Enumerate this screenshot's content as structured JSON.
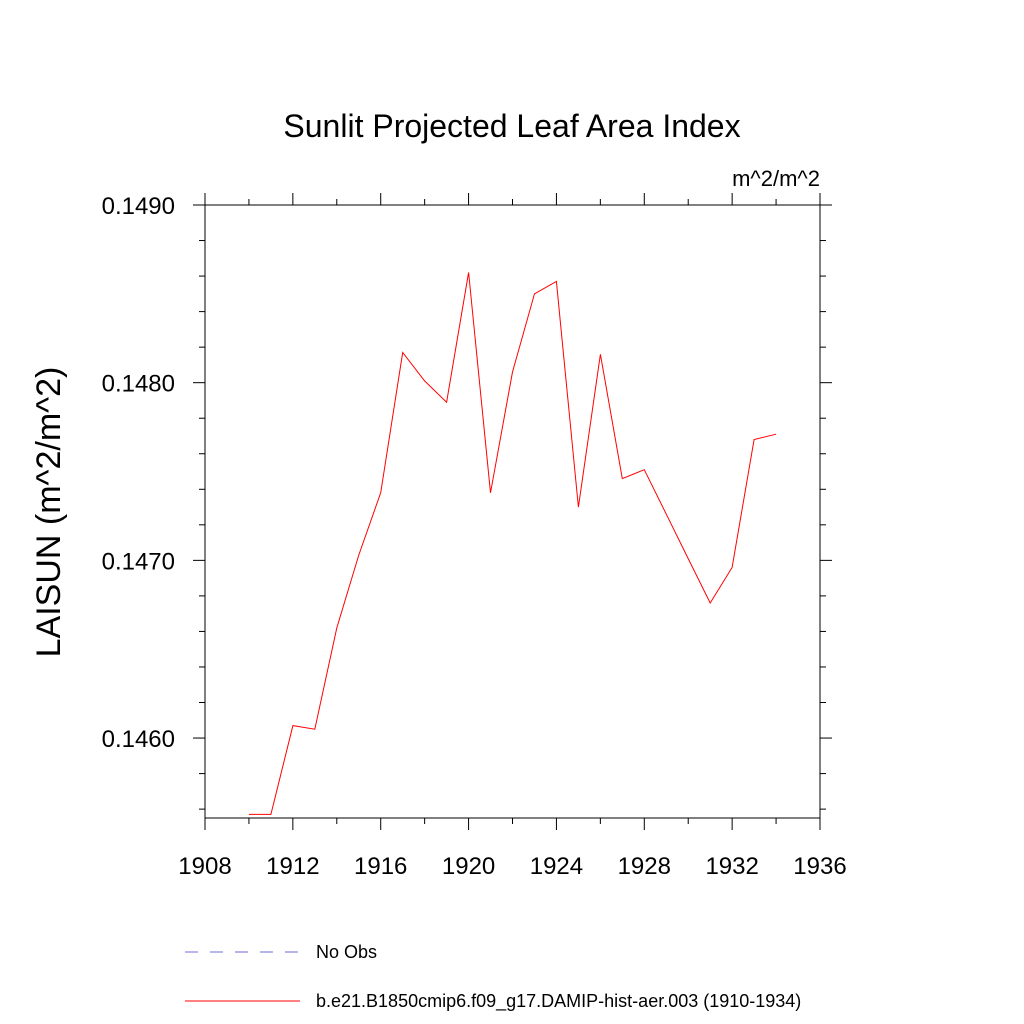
{
  "chart_data": {
    "type": "line",
    "title": "Sunlit Projected Leaf Area Index",
    "units": "m^2/m^2",
    "xlabel": "",
    "ylabel": "LAISUN  (m^2/m^2)",
    "xlim": [
      1908,
      1936
    ],
    "ylim": [
      0.14555,
      0.149
    ],
    "x_ticks": [
      1908,
      1912,
      1916,
      1920,
      1924,
      1928,
      1932,
      1936
    ],
    "x_tick_labels": [
      "1908",
      "1912",
      "1916",
      "1920",
      "1924",
      "1928",
      "1932",
      "1936"
    ],
    "y_ticks": [
      0.146,
      0.147,
      0.148,
      0.149
    ],
    "y_tick_labels": [
      "0.1460",
      "0.1470",
      "0.1480",
      "0.1490"
    ],
    "y_minor_step": 0.0002,
    "grid": false,
    "legend_position": "bottom",
    "series": [
      {
        "name": "b.e21.B1850cmip6.f09_g17.DAMIP-hist-aer.003 (1910-1934)",
        "color": "#ff0000",
        "dash": "solid",
        "x": [
          1910,
          1911,
          1912,
          1913,
          1914,
          1915,
          1916,
          1917,
          1918,
          1919,
          1920,
          1921,
          1922,
          1923,
          1924,
          1925,
          1926,
          1927,
          1928,
          1929,
          1930,
          1931,
          1932,
          1933,
          1934
        ],
        "values": [
          0.14557,
          0.14557,
          0.14607,
          0.14605,
          0.14662,
          0.14703,
          0.14738,
          0.14817,
          0.14801,
          0.14789,
          0.14862,
          0.14738,
          0.14806,
          0.1485,
          0.14857,
          0.1473,
          0.14816,
          0.14746,
          0.14751,
          0.14726,
          0.14701,
          0.14676,
          0.14696,
          0.14768,
          0.14771
        ]
      }
    ],
    "legend": [
      {
        "label": "No Obs",
        "color": "#6e6ed8",
        "dash": "dashed"
      },
      {
        "label": "b.e21.B1850cmip6.f09_g17.DAMIP-hist-aer.003 (1910-1934)",
        "color": "#ff0000",
        "dash": "solid"
      }
    ]
  }
}
